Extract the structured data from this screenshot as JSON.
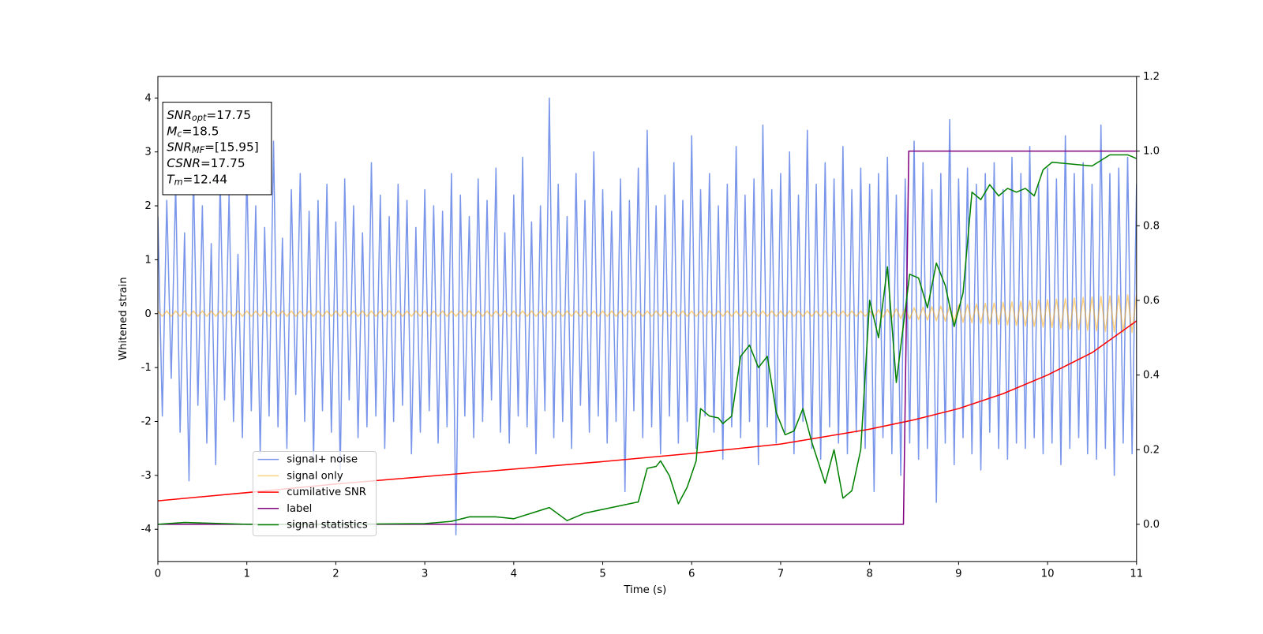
{
  "chart_data": {
    "type": "line",
    "xlabel": "Time (s)",
    "ylabel": "Whitened strain",
    "xlim": [
      0,
      11
    ],
    "xticks": [
      0,
      1,
      2,
      3,
      4,
      5,
      6,
      7,
      8,
      9,
      10,
      11
    ],
    "ylim": [
      -4.6,
      4.4
    ],
    "yticks": [
      -4,
      -3,
      -2,
      -1,
      0,
      1,
      2,
      3,
      4
    ],
    "y2lim": [
      -0.1,
      1.2
    ],
    "y2ticks": [
      {
        "value": 0,
        "label": "0.0"
      },
      0.2,
      0.4,
      0.6,
      0.8,
      {
        "value": 1,
        "label": "1.0"
      },
      1.2
    ],
    "legend": "lower left",
    "annotation": [
      {
        "base": "SNR",
        "sub": "opt",
        "rest": "=17.75"
      },
      {
        "base": "M",
        "sub": "c",
        "rest": "=18.5"
      },
      {
        "base": "SNR",
        "sub": "MF",
        "rest": "=[15.95]"
      },
      {
        "base": "CSNR",
        "rest": "=17.75"
      },
      {
        "base": "T",
        "sub": "m",
        "rest": "=12.44"
      }
    ],
    "x": [
      0,
      0.05,
      0.1,
      0.15,
      0.2,
      0.25,
      0.3,
      0.35,
      0.4,
      0.45,
      0.5,
      0.55,
      0.6,
      0.65,
      0.7,
      0.75,
      0.8,
      0.85,
      0.9,
      0.95,
      1,
      1.05,
      1.1,
      1.15,
      1.2,
      1.25,
      1.3,
      1.35,
      1.4,
      1.45,
      1.5,
      1.55,
      1.6,
      1.65,
      1.7,
      1.75,
      1.8,
      1.85,
      1.9,
      1.95,
      2,
      2.05,
      2.1,
      2.15,
      2.2,
      2.25,
      2.3,
      2.35,
      2.4,
      2.45,
      2.5,
      2.55,
      2.6,
      2.65,
      2.7,
      2.75,
      2.8,
      2.85,
      2.9,
      2.95,
      3,
      3.05,
      3.1,
      3.15,
      3.2,
      3.25,
      3.3,
      3.35,
      3.4,
      3.45,
      3.5,
      3.55,
      3.6,
      3.65,
      3.7,
      3.75,
      3.8,
      3.85,
      3.9,
      3.95,
      4,
      4.05,
      4.1,
      4.15,
      4.2,
      4.25,
      4.3,
      4.35,
      4.4,
      4.45,
      4.5,
      4.55,
      4.6,
      4.65,
      4.7,
      4.75,
      4.8,
      4.85,
      4.9,
      4.95,
      5,
      5.05,
      5.1,
      5.15,
      5.2,
      5.25,
      5.3,
      5.35,
      5.4,
      5.45,
      5.5,
      5.55,
      5.6,
      5.65,
      5.7,
      5.75,
      5.8,
      5.85,
      5.9,
      5.95,
      6,
      6.05,
      6.1,
      6.15,
      6.2,
      6.25,
      6.3,
      6.35,
      6.4,
      6.45,
      6.5,
      6.55,
      6.6,
      6.65,
      6.7,
      6.75,
      6.8,
      6.85,
      6.9,
      6.95,
      7,
      7.05,
      7.1,
      7.15,
      7.2,
      7.25,
      7.3,
      7.35,
      7.4,
      7.45,
      7.5,
      7.55,
      7.6,
      7.65,
      7.7,
      7.75,
      7.8,
      7.85,
      7.9,
      7.95,
      8,
      8.05,
      8.1,
      8.15,
      8.2,
      8.25,
      8.3,
      8.35,
      8.4,
      8.45,
      8.5,
      8.55,
      8.6,
      8.65,
      8.7,
      8.75,
      8.8,
      8.85,
      8.9,
      8.95,
      9,
      9.05,
      9.1,
      9.15,
      9.2,
      9.25,
      9.3,
      9.35,
      9.4,
      9.45,
      9.5,
      9.55,
      9.6,
      9.65,
      9.7,
      9.75,
      9.8,
      9.85,
      9.9,
      9.95,
      10,
      10.05,
      10.1,
      10.15,
      10.2,
      10.25,
      10.3,
      10.35,
      10.4,
      10.45,
      10.5,
      10.55,
      10.6,
      10.65,
      10.7,
      10.75,
      10.8,
      10.85,
      10.9,
      10.95,
      11
    ],
    "series": [
      {
        "name": "signal+ noise",
        "color": "#4169e1",
        "opacity": 0.7,
        "values": [
          1.8,
          -1.9,
          2.1,
          -1.2,
          2.4,
          -2.2,
          1.5,
          -3.1,
          2.6,
          -1.7,
          2.0,
          -2.4,
          1.3,
          -2.8,
          2.5,
          -1.6,
          2.2,
          -2.0,
          1.1,
          -2.3,
          2.7,
          -1.8,
          2.0,
          -2.6,
          1.6,
          -1.9,
          3.2,
          -2.1,
          1.4,
          -2.5,
          2.3,
          -1.5,
          2.6,
          -2.0,
          1.9,
          -2.7,
          2.1,
          -1.8,
          2.4,
          -2.2,
          1.7,
          -2.9,
          2.5,
          -1.6,
          2.0,
          -2.3,
          1.5,
          -2.1,
          2.8,
          -1.9,
          2.2,
          -2.5,
          1.8,
          -2.0,
          2.4,
          -1.7,
          2.1,
          -2.6,
          1.6,
          -2.2,
          2.3,
          -1.8,
          2.0,
          -2.4,
          1.9,
          -2.1,
          2.6,
          -4.1,
          2.2,
          -1.9,
          1.8,
          -2.3,
          2.5,
          -2.0,
          2.1,
          -1.6,
          2.7,
          -2.2,
          1.5,
          -2.4,
          2.2,
          -1.9,
          2.9,
          -2.1,
          1.7,
          -2.6,
          2.0,
          -1.8,
          4.0,
          -2.3,
          2.4,
          -2.0,
          1.8,
          -2.5,
          2.6,
          -1.7,
          2.1,
          -2.2,
          3.0,
          -1.9,
          2.3,
          -2.4,
          1.9,
          -2.0,
          2.5,
          -3.3,
          2.1,
          -1.8,
          2.7,
          -2.3,
          3.4,
          -2.1,
          2.0,
          -2.6,
          2.2,
          -1.9,
          2.8,
          -2.4,
          2.1,
          -2.0,
          3.3,
          -2.5,
          2.3,
          -1.9,
          2.6,
          -2.2,
          2.0,
          -2.7,
          2.4,
          -2.1,
          3.1,
          -2.3,
          2.2,
          -2.0,
          2.5,
          -2.8,
          3.5,
          -2.1,
          2.3,
          -2.4,
          2.6,
          -2.2,
          3.0,
          -2.6,
          2.2,
          -2.0,
          3.4,
          -2.5,
          2.4,
          -2.7,
          2.8,
          -2.1,
          2.5,
          -2.4,
          3.1,
          -2.6,
          2.3,
          -2.2,
          2.7,
          -2.5,
          2.4,
          -3.3,
          2.6,
          -2.3,
          2.9,
          -2.6,
          2.2,
          -3.0,
          2.5,
          -2.4,
          3.2,
          -2.7,
          2.8,
          -2.5,
          2.3,
          -3.5,
          2.6,
          -2.4,
          3.6,
          -2.8,
          2.5,
          -2.3,
          2.7,
          -2.6,
          2.4,
          -2.9,
          2.6,
          -2.2,
          2.8,
          -2.5,
          2.3,
          -2.7,
          2.9,
          -2.4,
          2.6,
          -2.5,
          3.1,
          -2.3,
          2.4,
          -2.6,
          2.7,
          -2.4,
          2.5,
          -2.8,
          3.3,
          -2.5,
          2.6,
          -2.3,
          2.8,
          -2.6,
          2.4,
          -2.7,
          3.5,
          -2.5,
          2.6,
          -3.0,
          2.7,
          -2.4,
          2.9,
          -2.6,
          2.4
        ]
      },
      {
        "name": "signal only",
        "color": "#ffa500",
        "opacity": 0.5,
        "values": [
          0.05,
          -0.05,
          0.05,
          -0.05,
          0.05,
          -0.05,
          0.05,
          -0.05,
          0.05,
          -0.05,
          0.05,
          -0.05,
          0.05,
          -0.05,
          0.05,
          -0.05,
          0.05,
          -0.05,
          0.05,
          -0.05,
          0.05,
          -0.05,
          0.05,
          -0.05,
          0.05,
          -0.05,
          0.05,
          -0.05,
          0.05,
          -0.05,
          0.05,
          -0.05,
          0.05,
          -0.05,
          0.05,
          -0.05,
          0.05,
          -0.05,
          0.05,
          -0.05,
          0.05,
          -0.05,
          0.05,
          -0.05,
          0.05,
          -0.05,
          0.05,
          -0.05,
          0.05,
          -0.05,
          0.05,
          -0.05,
          0.05,
          -0.05,
          0.05,
          -0.05,
          0.05,
          -0.05,
          0.05,
          -0.05,
          0.05,
          -0.05,
          0.05,
          -0.05,
          0.05,
          -0.05,
          0.05,
          -0.05,
          0.05,
          -0.05,
          0.05,
          -0.05,
          0.05,
          -0.05,
          0.05,
          -0.05,
          0.05,
          -0.05,
          0.05,
          -0.05,
          0.05,
          -0.05,
          0.05,
          -0.05,
          0.05,
          -0.05,
          0.05,
          -0.05,
          0.05,
          -0.05,
          0.05,
          -0.05,
          0.05,
          -0.05,
          0.05,
          -0.05,
          0.05,
          -0.05,
          0.05,
          -0.05,
          0.05,
          -0.05,
          0.05,
          -0.05,
          0.05,
          -0.05,
          0.05,
          -0.05,
          0.05,
          -0.05,
          0.05,
          -0.05,
          0.05,
          -0.05,
          0.05,
          -0.05,
          0.05,
          -0.05,
          0.05,
          -0.05,
          0.05,
          -0.05,
          0.05,
          -0.05,
          0.05,
          -0.05,
          0.05,
          -0.05,
          0.05,
          -0.05,
          0.05,
          -0.05,
          0.05,
          -0.05,
          0.05,
          -0.05,
          0.05,
          -0.05,
          0.05,
          -0.05,
          0.05,
          -0.05,
          0.05,
          -0.05,
          0.05,
          -0.05,
          0.05,
          -0.05,
          0.05,
          -0.05,
          0.05,
          -0.05,
          0.05,
          -0.05,
          0.05,
          -0.05,
          0.05,
          -0.05,
          0.05,
          -0.05,
          0.05,
          -0.06,
          0.07,
          -0.07,
          0.08,
          -0.08,
          0.09,
          -0.09,
          0.1,
          -0.1,
          0.11,
          -0.11,
          0.12,
          -0.12,
          0.13,
          -0.13,
          0.14,
          -0.14,
          0.15,
          -0.15,
          0.16,
          -0.16,
          0.17,
          -0.17,
          0.18,
          -0.18,
          0.19,
          -0.19,
          0.2,
          -0.2,
          0.21,
          -0.21,
          0.22,
          -0.22,
          0.23,
          -0.23,
          0.24,
          -0.24,
          0.25,
          -0.25,
          0.26,
          -0.26,
          0.27,
          -0.28,
          0.28,
          -0.29,
          0.29,
          -0.3,
          0.3,
          -0.31,
          0.31,
          -0.32,
          0.32,
          -0.33,
          0.33,
          -0.34,
          0.34,
          -0.35,
          0.35,
          -0.35,
          0.35
        ]
      },
      {
        "name": "cumilative SNR",
        "color": "#ff0000",
        "axis": "y2",
        "x": [
          0,
          1,
          2,
          3,
          4,
          5,
          6,
          7,
          8,
          8.5,
          9,
          9.5,
          10,
          10.5,
          11
        ],
        "values": [
          0.063,
          0.085,
          0.108,
          0.128,
          0.148,
          0.168,
          0.19,
          0.215,
          0.255,
          0.28,
          0.31,
          0.35,
          0.4,
          0.46,
          0.545
        ]
      },
      {
        "name": "label",
        "color": "#800080",
        "axis": "y2",
        "x": [
          0,
          8.38,
          8.44,
          11
        ],
        "values": [
          0,
          0,
          1,
          1
        ]
      },
      {
        "name": "signal statistics",
        "color": "#008000",
        "axis": "y2",
        "x": [
          0,
          0.3,
          1,
          2,
          3,
          3.3,
          3.5,
          3.8,
          4,
          4.2,
          4.4,
          4.6,
          4.8,
          5,
          5.2,
          5.4,
          5.5,
          5.6,
          5.65,
          5.75,
          5.85,
          5.95,
          6.05,
          6.1,
          6.2,
          6.3,
          6.35,
          6.45,
          6.55,
          6.65,
          6.75,
          6.85,
          6.95,
          7.05,
          7.15,
          7.25,
          7.35,
          7.5,
          7.6,
          7.7,
          7.8,
          7.9,
          8,
          8.1,
          8.2,
          8.3,
          8.45,
          8.55,
          8.65,
          8.75,
          8.85,
          8.95,
          9.05,
          9.15,
          9.25,
          9.35,
          9.45,
          9.55,
          9.65,
          9.75,
          9.85,
          9.95,
          10.05,
          10.5,
          10.7,
          10.9,
          11
        ],
        "values": [
          0,
          0.005,
          0,
          0,
          0.002,
          0.008,
          0.02,
          0.02,
          0.015,
          0.03,
          0.045,
          0.01,
          0.03,
          0.04,
          0.05,
          0.06,
          0.15,
          0.155,
          0.17,
          0.13,
          0.055,
          0.1,
          0.17,
          0.31,
          0.29,
          0.285,
          0.27,
          0.29,
          0.45,
          0.48,
          0.42,
          0.45,
          0.3,
          0.24,
          0.25,
          0.31,
          0.22,
          0.11,
          0.2,
          0.07,
          0.09,
          0.2,
          0.6,
          0.5,
          0.69,
          0.38,
          0.67,
          0.66,
          0.58,
          0.7,
          0.64,
          0.53,
          0.62,
          0.89,
          0.87,
          0.91,
          0.88,
          0.9,
          0.89,
          0.9,
          0.88,
          0.95,
          0.97,
          0.96,
          0.99,
          0.99,
          0.98
        ]
      }
    ]
  }
}
